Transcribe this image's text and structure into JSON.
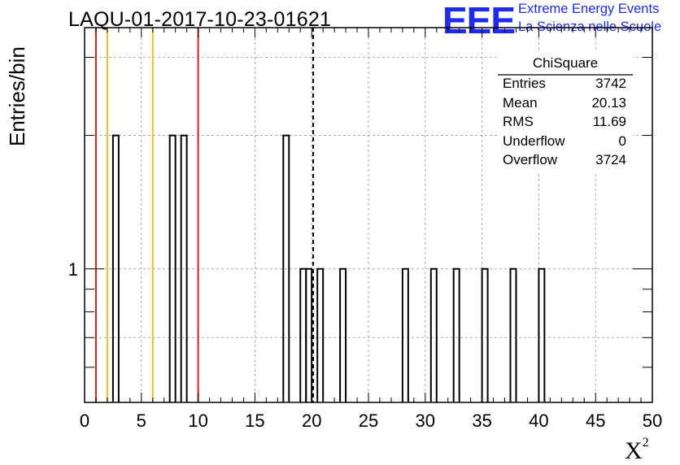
{
  "title": "LAQU-01-2017-10-23-01621",
  "logo": {
    "mark": "EEE",
    "line1": "Extreme Energy Events",
    "line2": "La Scienza nelle Scuole",
    "color": "#1f2cf0"
  },
  "stats": {
    "title": "ChiSquare",
    "rows": [
      {
        "key": "Entries",
        "value": "3742"
      },
      {
        "key": "Mean",
        "value": "20.13"
      },
      {
        "key": "RMS",
        "value": "11.69"
      },
      {
        "key": "Underflow",
        "value": "0"
      },
      {
        "key": "Overflow",
        "value": "3724"
      }
    ]
  },
  "chart_data": {
    "type": "bar",
    "title": "LAQU-01-2017-10-23-01621",
    "xlabel": "X",
    "xlabel_superscript": "2",
    "ylabel": "Entries/bin",
    "xlim": [
      0,
      50
    ],
    "ylim": [
      0.5,
      3.5
    ],
    "y_scale": "log",
    "grid": true,
    "x_ticks": [
      "0",
      "5",
      "10",
      "15",
      "20",
      "25",
      "30",
      "35",
      "40",
      "45",
      "50"
    ],
    "y_tick_labels": [
      "1"
    ],
    "bin_width": 0.5,
    "bins": [
      {
        "x": 2.5,
        "count": 2
      },
      {
        "x": 7.5,
        "count": 2
      },
      {
        "x": 8.5,
        "count": 2
      },
      {
        "x": 17.5,
        "count": 2
      },
      {
        "x": 19.0,
        "count": 1
      },
      {
        "x": 19.5,
        "count": 1
      },
      {
        "x": 20.5,
        "count": 1
      },
      {
        "x": 22.5,
        "count": 1
      },
      {
        "x": 28.0,
        "count": 1
      },
      {
        "x": 30.5,
        "count": 1
      },
      {
        "x": 32.5,
        "count": 1
      },
      {
        "x": 35.0,
        "count": 1
      },
      {
        "x": 37.5,
        "count": 1
      },
      {
        "x": 40.0,
        "count": 1
      }
    ],
    "vertical_lines": [
      {
        "x": 1.0,
        "color": "#d42020",
        "style": "solid"
      },
      {
        "x": 2.0,
        "color": "#f0c020",
        "style": "solid"
      },
      {
        "x": 6.0,
        "color": "#f0c020",
        "style": "solid"
      },
      {
        "x": 10.0,
        "color": "#d42020",
        "style": "solid"
      },
      {
        "x": 20.13,
        "color": "#000000",
        "style": "dashed"
      }
    ],
    "legend_placement": "top-right"
  }
}
